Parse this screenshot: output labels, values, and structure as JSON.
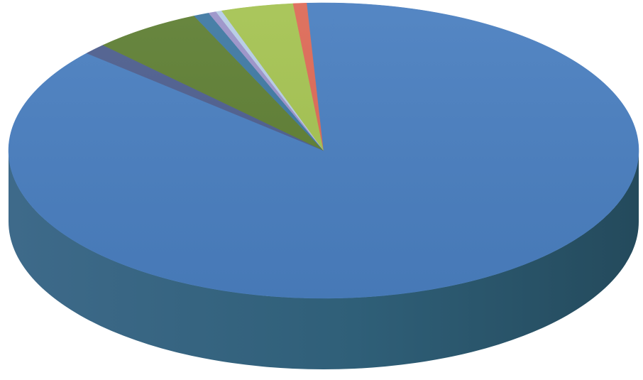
{
  "chart_data": {
    "type": "pie",
    "style": "3d",
    "title": "",
    "legend": "none",
    "labels_shown": false,
    "slices": [
      {
        "value": 85.9,
        "color": "#4a7fc0"
      },
      {
        "value": 1.2,
        "color": "#4e5f8f"
      },
      {
        "value": 5.6,
        "color": "#5f7f34"
      },
      {
        "value": 0.8,
        "color": "#3f79a3"
      },
      {
        "value": 0.4,
        "color": "#9b93c9"
      },
      {
        "value": 0.3,
        "color": "#b7cde6"
      },
      {
        "value": 3.7,
        "color": "#a5c352"
      },
      {
        "value": 0.7,
        "color": "#dd6a57"
      },
      {
        "value": 1.4,
        "color": "#4a7fc0"
      }
    ]
  }
}
